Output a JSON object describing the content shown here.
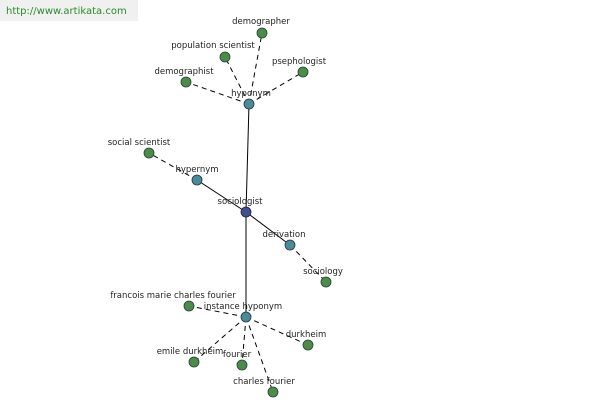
{
  "header": {
    "url": "http://www.artikata.com"
  },
  "nodes": [
    {
      "label": "sociologist"
    },
    {
      "label": "hyponym"
    },
    {
      "label": "hypernym"
    },
    {
      "label": "derivation"
    },
    {
      "label": "instance hyponym"
    },
    {
      "label": "demographer"
    },
    {
      "label": "population scientist"
    },
    {
      "label": "psephologist"
    },
    {
      "label": "demographist"
    },
    {
      "label": "social scientist"
    },
    {
      "label": "sociology"
    },
    {
      "label": "francois marie charles fourier"
    },
    {
      "label": "durkheim"
    },
    {
      "label": "emile durkheim"
    },
    {
      "label": "fourier"
    },
    {
      "label": "charles fourier"
    }
  ]
}
